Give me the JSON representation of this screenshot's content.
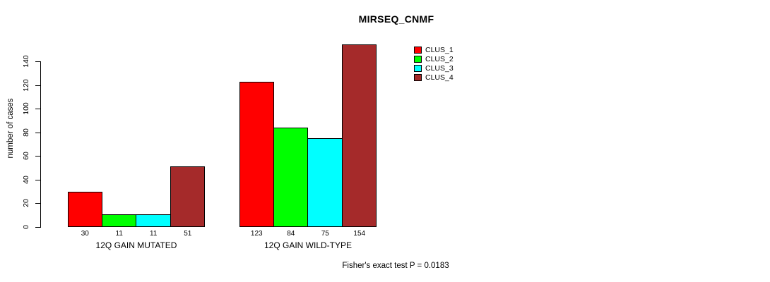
{
  "title": "MIRSEQ_CNMF",
  "footer": "Fisher's exact test P = 0.0183",
  "y_axis": {
    "label": "number of cases",
    "ticks": [
      0,
      20,
      40,
      60,
      80,
      100,
      120,
      140
    ]
  },
  "legend": {
    "entries": [
      {
        "label": "CLUS_1",
        "color": "#ff0000"
      },
      {
        "label": "CLUS_2",
        "color": "#00ff00"
      },
      {
        "label": "CLUS_3",
        "color": "#00ffff"
      },
      {
        "label": "CLUS_4",
        "color": "#a52a2a"
      }
    ]
  },
  "chart_data": {
    "type": "bar",
    "title": "MIRSEQ_CNMF",
    "categories": [
      "12Q GAIN MUTATED",
      "12Q GAIN WILD-TYPE"
    ],
    "series": [
      {
        "name": "CLUS_1",
        "color": "#ff0000",
        "values": [
          30,
          123
        ]
      },
      {
        "name": "CLUS_2",
        "color": "#00ff00",
        "values": [
          11,
          84
        ]
      },
      {
        "name": "CLUS_3",
        "color": "#00ffff",
        "values": [
          11,
          75
        ]
      },
      {
        "name": "CLUS_4",
        "color": "#a52a2a",
        "values": [
          51,
          154
        ]
      }
    ],
    "bar_value_labels": [
      [
        30,
        11,
        11,
        51
      ],
      [
        123,
        84,
        75,
        154
      ]
    ],
    "xlabel": "",
    "ylabel": "number of cases",
    "ylim": [
      0,
      158
    ],
    "yticks": [
      0,
      20,
      40,
      60,
      80,
      100,
      120,
      140
    ],
    "grid": false,
    "bar_border_color": "#000000",
    "legend_position": "top-right",
    "annotation": "Fisher's exact test P = 0.0183"
  }
}
